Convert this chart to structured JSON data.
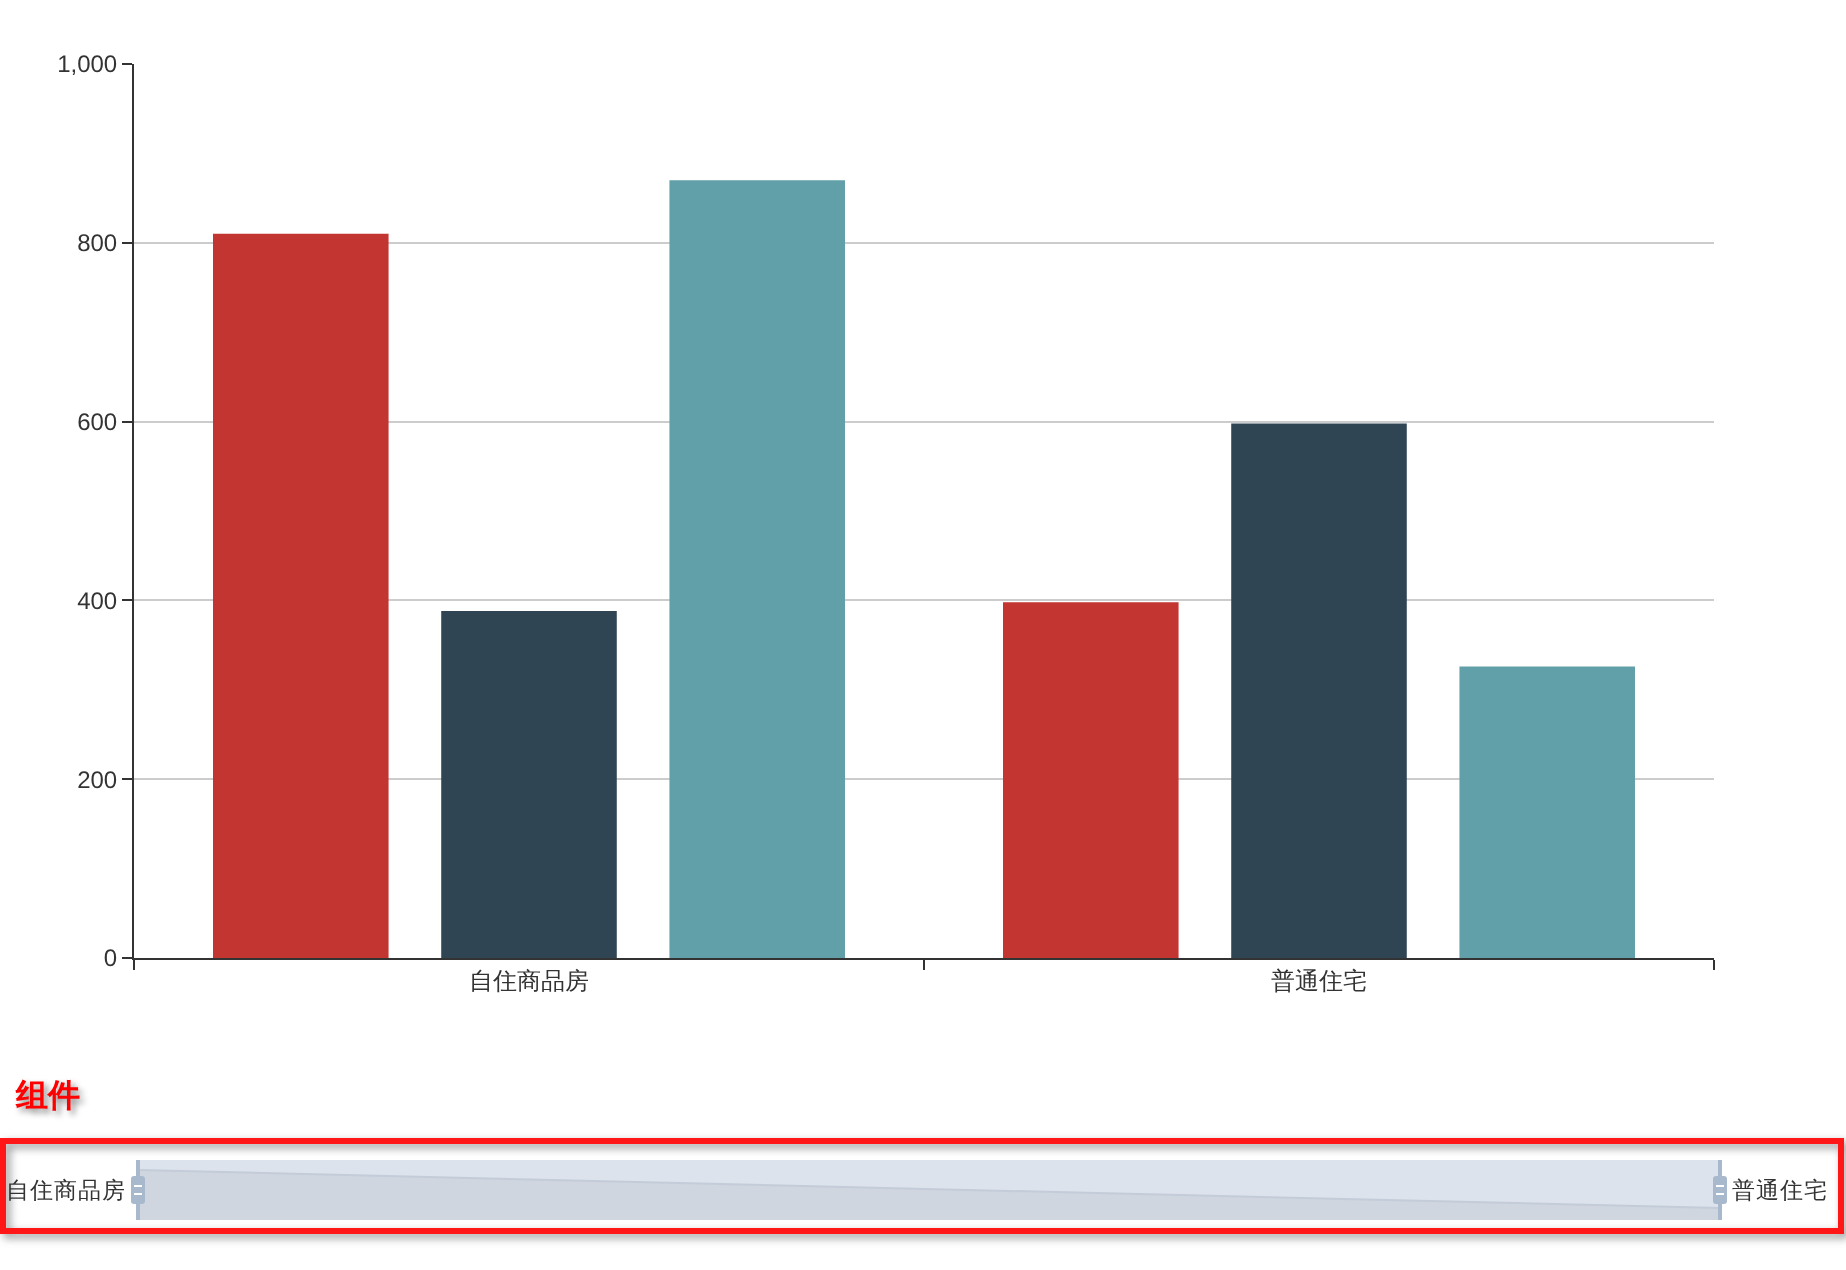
{
  "chart_data": {
    "type": "bar",
    "categories": [
      "自住商品房",
      "普通住宅"
    ],
    "series": [
      {
        "color": "#c23531",
        "values": [
          810,
          398
        ]
      },
      {
        "color": "#2f4554",
        "values": [
          388,
          598
        ]
      },
      {
        "color": "#61a0a8",
        "values": [
          870,
          326
        ]
      }
    ],
    "ylim": [
      0,
      1000
    ],
    "yticks": [
      0,
      200,
      400,
      600,
      800,
      {
        "value": 1000,
        "label": "1,000"
      }
    ],
    "grid": "y",
    "annotations": [
      "组件"
    ]
  }
}
